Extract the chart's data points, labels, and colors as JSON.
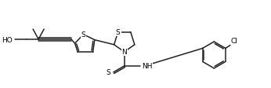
{
  "figsize": [
    3.46,
    1.13
  ],
  "dpi": 100,
  "bg_color": "#ffffff",
  "line_color": "#222222",
  "lw": 1.1,
  "font_size": 6.5,
  "font_color": "#000000",
  "xlim": [
    0,
    346
  ],
  "ylim": [
    0,
    113
  ]
}
